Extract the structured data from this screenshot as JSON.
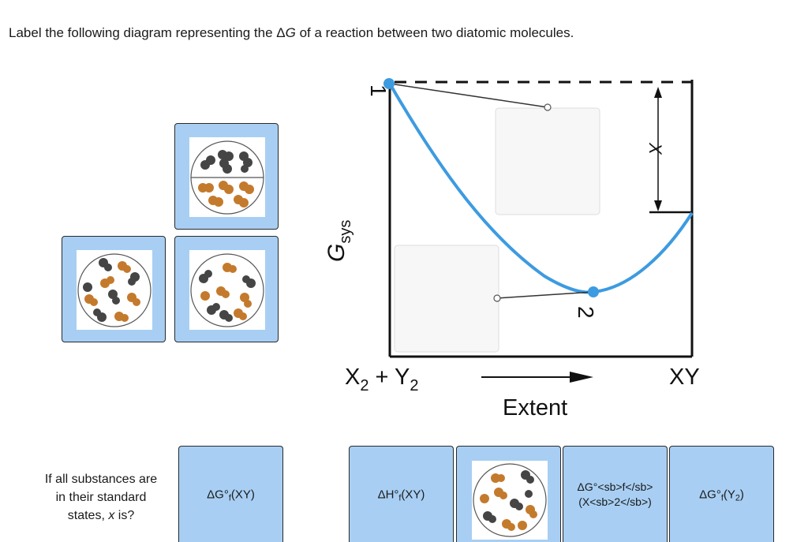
{
  "question": {
    "prefix": "Label the following diagram representing the ",
    "delta": "Δ",
    "g": "G",
    "suffix": " of a reaction between two diatomic molecules."
  },
  "diagram": {
    "y_axis_label": "G",
    "y_axis_sub": "sys",
    "x_axis_label": "Extent",
    "left_label": "X",
    "left_label_sub1": "2",
    "left_label_plus": " + Y",
    "left_label_sub2": "2",
    "right_label": "XY",
    "point_1": "1",
    "point_2": "2",
    "x_marker": "X"
  },
  "prompt": {
    "line1": "If all substances are",
    "line2": "in their standard",
    "line3_prefix": "states, ",
    "line3_var": "x",
    "line3_suffix": " is?"
  },
  "cards": {
    "dgf_xy": {
      "prefix": "ΔG°",
      "sub": "f",
      "suffix": "(XY)"
    },
    "dhf_xy": {
      "prefix": "ΔH°",
      "sub": "f",
      "suffix": "(XY)"
    },
    "dgf_x2_line1": "ΔG°<sb>f</sb>",
    "dgf_x2_line2": "(X<sb>2</sb>)",
    "dgf_y2": {
      "prefix": "ΔG°",
      "sub": "f",
      "suffix": "(Y",
      "sub2": "2",
      "end": ")"
    }
  },
  "colors": {
    "card_blue": "#a8cff3",
    "curve_blue": "#3d9be0",
    "molecule_dark": "#454545",
    "molecule_orange": "#c47a2c"
  }
}
